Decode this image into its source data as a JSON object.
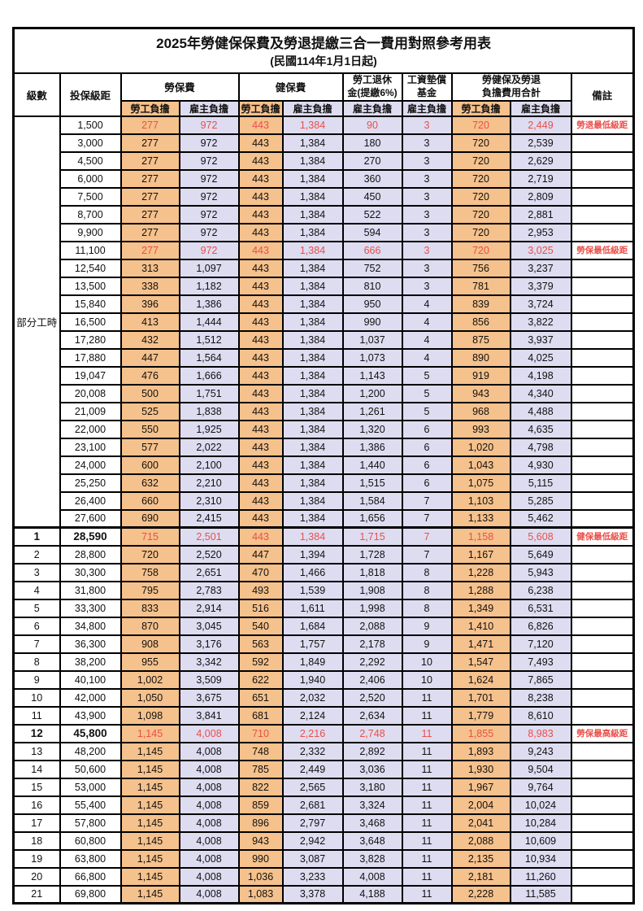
{
  "colors": {
    "employee_bg": "#F5C18C",
    "employer_bg": "#DEDCF0",
    "highlight_red": "#EA4F4A"
  },
  "title": "2025年勞健保保費及勞退提繳三合一費用對照參考用表",
  "subtitle": "(民國114年1月1日起)",
  "header": {
    "level": "級數",
    "bracket": "投保級距",
    "labor_group": "勞保費",
    "health_group": "健保費",
    "pension_line1": "勞工退休",
    "pension_line2": "金(提繳6%)",
    "wage_fund_line1": "工資墊償",
    "wage_fund_line2": "基金",
    "total_line1": "勞健保及勞退",
    "total_line2": "負擔費用合計",
    "remark": "備註",
    "employee": "勞工負擔",
    "employer": "雇主負擔"
  },
  "part_time_label": "部分工時",
  "part_time_rowspan": 23,
  "rows": [
    {
      "level": null,
      "bracket": "1,500",
      "values": [
        "277",
        "972",
        "443",
        "1,384",
        "90",
        "3",
        "720",
        "2,449"
      ],
      "red": true,
      "note": "勞退最低級距",
      "emphasis": false,
      "thick_top": false
    },
    {
      "level": null,
      "bracket": "3,000",
      "values": [
        "277",
        "972",
        "443",
        "1,384",
        "180",
        "3",
        "720",
        "2,539"
      ],
      "red": false,
      "note": "",
      "emphasis": false,
      "thick_top": false
    },
    {
      "level": null,
      "bracket": "4,500",
      "values": [
        "277",
        "972",
        "443",
        "1,384",
        "270",
        "3",
        "720",
        "2,629"
      ],
      "red": false,
      "note": "",
      "emphasis": false,
      "thick_top": false
    },
    {
      "level": null,
      "bracket": "6,000",
      "values": [
        "277",
        "972",
        "443",
        "1,384",
        "360",
        "3",
        "720",
        "2,719"
      ],
      "red": false,
      "note": "",
      "emphasis": false,
      "thick_top": false
    },
    {
      "level": null,
      "bracket": "7,500",
      "values": [
        "277",
        "972",
        "443",
        "1,384",
        "450",
        "3",
        "720",
        "2,809"
      ],
      "red": false,
      "note": "",
      "emphasis": false,
      "thick_top": false
    },
    {
      "level": null,
      "bracket": "8,700",
      "values": [
        "277",
        "972",
        "443",
        "1,384",
        "522",
        "3",
        "720",
        "2,881"
      ],
      "red": false,
      "note": "",
      "emphasis": false,
      "thick_top": false
    },
    {
      "level": null,
      "bracket": "9,900",
      "values": [
        "277",
        "972",
        "443",
        "1,384",
        "594",
        "3",
        "720",
        "2,953"
      ],
      "red": false,
      "note": "",
      "emphasis": false,
      "thick_top": false
    },
    {
      "level": null,
      "bracket": "11,100",
      "values": [
        "277",
        "972",
        "443",
        "1,384",
        "666",
        "3",
        "720",
        "3,025"
      ],
      "red": true,
      "note": "勞保最低級距",
      "emphasis": false,
      "thick_top": false
    },
    {
      "level": null,
      "bracket": "12,540",
      "values": [
        "313",
        "1,097",
        "443",
        "1,384",
        "752",
        "3",
        "756",
        "3,237"
      ],
      "red": false,
      "note": "",
      "emphasis": false,
      "thick_top": false
    },
    {
      "level": null,
      "bracket": "13,500",
      "values": [
        "338",
        "1,182",
        "443",
        "1,384",
        "810",
        "3",
        "781",
        "3,379"
      ],
      "red": false,
      "note": "",
      "emphasis": false,
      "thick_top": false
    },
    {
      "level": null,
      "bracket": "15,840",
      "values": [
        "396",
        "1,386",
        "443",
        "1,384",
        "950",
        "4",
        "839",
        "3,724"
      ],
      "red": false,
      "note": "",
      "emphasis": false,
      "thick_top": false
    },
    {
      "level": null,
      "bracket": "16,500",
      "values": [
        "413",
        "1,444",
        "443",
        "1,384",
        "990",
        "4",
        "856",
        "3,822"
      ],
      "red": false,
      "note": "",
      "emphasis": false,
      "thick_top": false
    },
    {
      "level": null,
      "bracket": "17,280",
      "values": [
        "432",
        "1,512",
        "443",
        "1,384",
        "1,037",
        "4",
        "875",
        "3,937"
      ],
      "red": false,
      "note": "",
      "emphasis": false,
      "thick_top": false
    },
    {
      "level": null,
      "bracket": "17,880",
      "values": [
        "447",
        "1,564",
        "443",
        "1,384",
        "1,073",
        "4",
        "890",
        "4,025"
      ],
      "red": false,
      "note": "",
      "emphasis": false,
      "thick_top": false
    },
    {
      "level": null,
      "bracket": "19,047",
      "values": [
        "476",
        "1,666",
        "443",
        "1,384",
        "1,143",
        "5",
        "919",
        "4,198"
      ],
      "red": false,
      "note": "",
      "emphasis": false,
      "thick_top": false
    },
    {
      "level": null,
      "bracket": "20,008",
      "values": [
        "500",
        "1,751",
        "443",
        "1,384",
        "1,200",
        "5",
        "943",
        "4,340"
      ],
      "red": false,
      "note": "",
      "emphasis": false,
      "thick_top": false
    },
    {
      "level": null,
      "bracket": "21,009",
      "values": [
        "525",
        "1,838",
        "443",
        "1,384",
        "1,261",
        "5",
        "968",
        "4,488"
      ],
      "red": false,
      "note": "",
      "emphasis": false,
      "thick_top": false
    },
    {
      "level": null,
      "bracket": "22,000",
      "values": [
        "550",
        "1,925",
        "443",
        "1,384",
        "1,320",
        "6",
        "993",
        "4,635"
      ],
      "red": false,
      "note": "",
      "emphasis": false,
      "thick_top": false
    },
    {
      "level": null,
      "bracket": "23,100",
      "values": [
        "577",
        "2,022",
        "443",
        "1,384",
        "1,386",
        "6",
        "1,020",
        "4,798"
      ],
      "red": false,
      "note": "",
      "emphasis": false,
      "thick_top": false
    },
    {
      "level": null,
      "bracket": "24,000",
      "values": [
        "600",
        "2,100",
        "443",
        "1,384",
        "1,440",
        "6",
        "1,043",
        "4,930"
      ],
      "red": false,
      "note": "",
      "emphasis": false,
      "thick_top": false
    },
    {
      "level": null,
      "bracket": "25,250",
      "values": [
        "632",
        "2,210",
        "443",
        "1,384",
        "1,515",
        "6",
        "1,075",
        "5,115"
      ],
      "red": false,
      "note": "",
      "emphasis": false,
      "thick_top": false
    },
    {
      "level": null,
      "bracket": "26,400",
      "values": [
        "660",
        "2,310",
        "443",
        "1,384",
        "1,584",
        "7",
        "1,103",
        "5,285"
      ],
      "red": false,
      "note": "",
      "emphasis": false,
      "thick_top": false
    },
    {
      "level": null,
      "bracket": "27,600",
      "values": [
        "690",
        "2,415",
        "443",
        "1,384",
        "1,656",
        "7",
        "1,133",
        "5,462"
      ],
      "red": false,
      "note": "",
      "emphasis": false,
      "thick_top": false
    },
    {
      "level": "1",
      "bracket": "28,590",
      "values": [
        "715",
        "2,501",
        "443",
        "1,384",
        "1,715",
        "7",
        "1,158",
        "5,608"
      ],
      "red": true,
      "note": "健保最低級距",
      "emphasis": true,
      "thick_top": true
    },
    {
      "level": "2",
      "bracket": "28,800",
      "values": [
        "720",
        "2,520",
        "447",
        "1,394",
        "1,728",
        "7",
        "1,167",
        "5,649"
      ],
      "red": false,
      "note": "",
      "emphasis": false,
      "thick_top": false
    },
    {
      "level": "3",
      "bracket": "30,300",
      "values": [
        "758",
        "2,651",
        "470",
        "1,466",
        "1,818",
        "8",
        "1,228",
        "5,943"
      ],
      "red": false,
      "note": "",
      "emphasis": false,
      "thick_top": false
    },
    {
      "level": "4",
      "bracket": "31,800",
      "values": [
        "795",
        "2,783",
        "493",
        "1,539",
        "1,908",
        "8",
        "1,288",
        "6,238"
      ],
      "red": false,
      "note": "",
      "emphasis": false,
      "thick_top": false
    },
    {
      "level": "5",
      "bracket": "33,300",
      "values": [
        "833",
        "2,914",
        "516",
        "1,611",
        "1,998",
        "8",
        "1,349",
        "6,531"
      ],
      "red": false,
      "note": "",
      "emphasis": false,
      "thick_top": false
    },
    {
      "level": "6",
      "bracket": "34,800",
      "values": [
        "870",
        "3,045",
        "540",
        "1,684",
        "2,088",
        "9",
        "1,410",
        "6,826"
      ],
      "red": false,
      "note": "",
      "emphasis": false,
      "thick_top": false
    },
    {
      "level": "7",
      "bracket": "36,300",
      "values": [
        "908",
        "3,176",
        "563",
        "1,757",
        "2,178",
        "9",
        "1,471",
        "7,120"
      ],
      "red": false,
      "note": "",
      "emphasis": false,
      "thick_top": false
    },
    {
      "level": "8",
      "bracket": "38,200",
      "values": [
        "955",
        "3,342",
        "592",
        "1,849",
        "2,292",
        "10",
        "1,547",
        "7,493"
      ],
      "red": false,
      "note": "",
      "emphasis": false,
      "thick_top": false
    },
    {
      "level": "9",
      "bracket": "40,100",
      "values": [
        "1,002",
        "3,509",
        "622",
        "1,940",
        "2,406",
        "10",
        "1,624",
        "7,865"
      ],
      "red": false,
      "note": "",
      "emphasis": false,
      "thick_top": false
    },
    {
      "level": "10",
      "bracket": "42,000",
      "values": [
        "1,050",
        "3,675",
        "651",
        "2,032",
        "2,520",
        "11",
        "1,701",
        "8,238"
      ],
      "red": false,
      "note": "",
      "emphasis": false,
      "thick_top": false
    },
    {
      "level": "11",
      "bracket": "43,900",
      "values": [
        "1,098",
        "3,841",
        "681",
        "2,124",
        "2,634",
        "11",
        "1,779",
        "8,610"
      ],
      "red": false,
      "note": "",
      "emphasis": false,
      "thick_top": false
    },
    {
      "level": "12",
      "bracket": "45,800",
      "values": [
        "1,145",
        "4,008",
        "710",
        "2,216",
        "2,748",
        "11",
        "1,855",
        "8,983"
      ],
      "red": true,
      "note": "勞保最高級距",
      "emphasis": true,
      "thick_top": false
    },
    {
      "level": "13",
      "bracket": "48,200",
      "values": [
        "1,145",
        "4,008",
        "748",
        "2,332",
        "2,892",
        "11",
        "1,893",
        "9,243"
      ],
      "red": false,
      "note": "",
      "emphasis": false,
      "thick_top": false
    },
    {
      "level": "14",
      "bracket": "50,600",
      "values": [
        "1,145",
        "4,008",
        "785",
        "2,449",
        "3,036",
        "11",
        "1,930",
        "9,504"
      ],
      "red": false,
      "note": "",
      "emphasis": false,
      "thick_top": false
    },
    {
      "level": "15",
      "bracket": "53,000",
      "values": [
        "1,145",
        "4,008",
        "822",
        "2,565",
        "3,180",
        "11",
        "1,967",
        "9,764"
      ],
      "red": false,
      "note": "",
      "emphasis": false,
      "thick_top": false
    },
    {
      "level": "16",
      "bracket": "55,400",
      "values": [
        "1,145",
        "4,008",
        "859",
        "2,681",
        "3,324",
        "11",
        "2,004",
        "10,024"
      ],
      "red": false,
      "note": "",
      "emphasis": false,
      "thick_top": false
    },
    {
      "level": "17",
      "bracket": "57,800",
      "values": [
        "1,145",
        "4,008",
        "896",
        "2,797",
        "3,468",
        "11",
        "2,041",
        "10,284"
      ],
      "red": false,
      "note": "",
      "emphasis": false,
      "thick_top": false
    },
    {
      "level": "18",
      "bracket": "60,800",
      "values": [
        "1,145",
        "4,008",
        "943",
        "2,942",
        "3,648",
        "11",
        "2,088",
        "10,609"
      ],
      "red": false,
      "note": "",
      "emphasis": false,
      "thick_top": false
    },
    {
      "level": "19",
      "bracket": "63,800",
      "values": [
        "1,145",
        "4,008",
        "990",
        "3,087",
        "3,828",
        "11",
        "2,135",
        "10,934"
      ],
      "red": false,
      "note": "",
      "emphasis": false,
      "thick_top": false
    },
    {
      "level": "20",
      "bracket": "66,800",
      "values": [
        "1,145",
        "4,008",
        "1,036",
        "3,233",
        "4,008",
        "11",
        "2,181",
        "11,260"
      ],
      "red": false,
      "note": "",
      "emphasis": false,
      "thick_top": false
    },
    {
      "level": "21",
      "bracket": "69,800",
      "values": [
        "1,145",
        "4,008",
        "1,083",
        "3,378",
        "4,188",
        "11",
        "2,228",
        "11,585"
      ],
      "red": false,
      "note": "",
      "emphasis": false,
      "thick_top": false
    }
  ]
}
